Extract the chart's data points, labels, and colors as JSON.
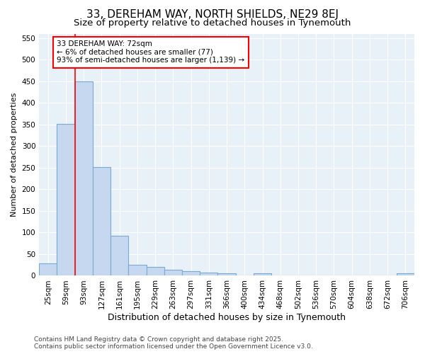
{
  "title": "33, DEREHAM WAY, NORTH SHIELDS, NE29 8EJ",
  "subtitle": "Size of property relative to detached houses in Tynemouth",
  "xlabel": "Distribution of detached houses by size in Tynemouth",
  "ylabel": "Number of detached properties",
  "categories": [
    "25sqm",
    "59sqm",
    "93sqm",
    "127sqm",
    "161sqm",
    "195sqm",
    "229sqm",
    "263sqm",
    "297sqm",
    "331sqm",
    "366sqm",
    "400sqm",
    "434sqm",
    "468sqm",
    "502sqm",
    "536sqm",
    "570sqm",
    "604sqm",
    "638sqm",
    "672sqm",
    "706sqm"
  ],
  "values": [
    28,
    352,
    449,
    252,
    93,
    26,
    21,
    14,
    11,
    7,
    5,
    0,
    5,
    0,
    0,
    0,
    0,
    0,
    0,
    0,
    5
  ],
  "bar_color": "#c5d8f0",
  "bar_edge_color": "#7aaad4",
  "bar_edge_width": 0.8,
  "red_line_x": 1.5,
  "annotation_text": "33 DEREHAM WAY: 72sqm\n← 6% of detached houses are smaller (77)\n93% of semi-detached houses are larger (1,139) →",
  "annotation_box_facecolor": "white",
  "annotation_box_edgecolor": "red",
  "background_color": "#ffffff",
  "plot_bg_color": "#e8f0f8",
  "grid_color": "#ffffff",
  "ylim": [
    0,
    560
  ],
  "yticks": [
    0,
    50,
    100,
    150,
    200,
    250,
    300,
    350,
    400,
    450,
    500,
    550
  ],
  "title_fontsize": 11,
  "subtitle_fontsize": 9.5,
  "xlabel_fontsize": 9,
  "ylabel_fontsize": 8,
  "tick_fontsize": 7.5,
  "footer": "Contains HM Land Registry data © Crown copyright and database right 2025.\nContains public sector information licensed under the Open Government Licence v3.0.",
  "footer_fontsize": 6.5
}
